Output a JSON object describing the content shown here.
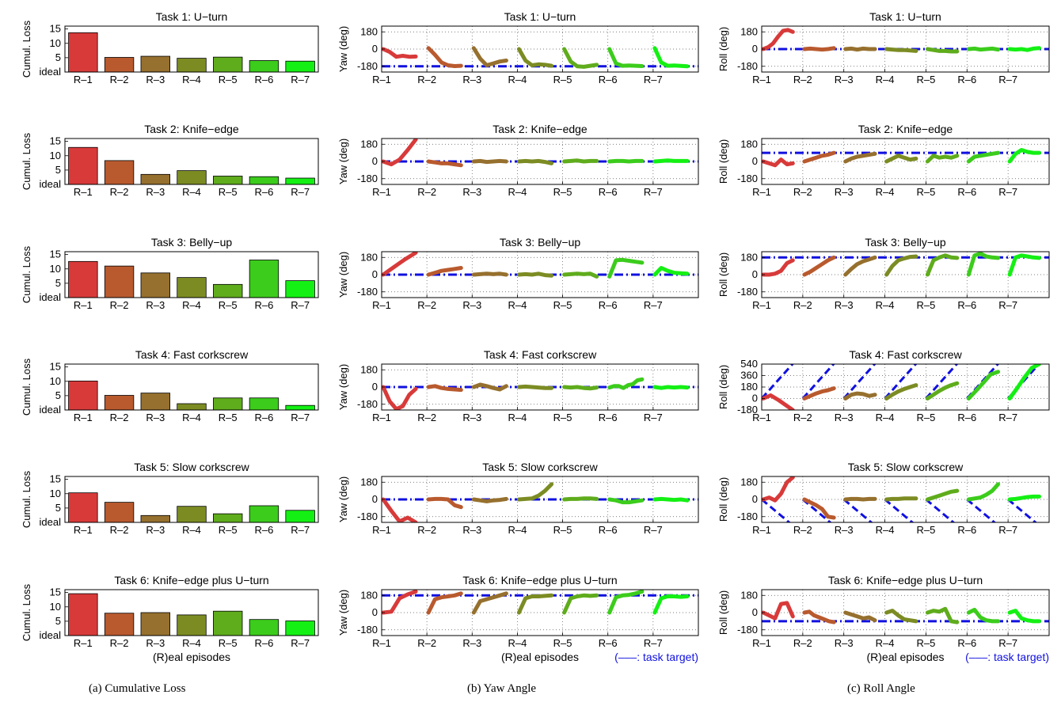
{
  "captions": {
    "a": "(a)  Cumulative Loss",
    "b": "(b)  Yaw Angle",
    "c": "(c)  Roll Angle"
  },
  "common": {
    "categories": [
      "R–1",
      "R–2",
      "R–3",
      "R–4",
      "R–5",
      "R–6",
      "R–7"
    ],
    "xlabel": "(R)eal episodes",
    "target_note": "(–––: task target)",
    "colors": [
      "#d83a3a",
      "#b95a2e",
      "#96702e",
      "#7c8c23",
      "#5fac1c",
      "#3ccc1c",
      "#14f014"
    ],
    "target_color": "#1010e0"
  },
  "chart_data": [
    {
      "panel": "loss",
      "task": 1,
      "type": "bar",
      "title": "Task 1: U−turn",
      "ylabel": "Cumul. Loss",
      "yticks": [
        "15",
        "10",
        "5",
        "ideal"
      ],
      "ylim": [
        0,
        16
      ],
      "values": [
        13.7,
        5.1,
        5.5,
        4.8,
        5.2,
        4.0,
        3.8
      ]
    },
    {
      "panel": "loss",
      "task": 2,
      "type": "bar",
      "title": "Task 2: Knife−edge",
      "ylabel": "Cumul. Loss",
      "yticks": [
        "15",
        "10",
        "5",
        "ideal"
      ],
      "ylim": [
        0,
        16
      ],
      "values": [
        12.9,
        8.3,
        3.5,
        4.8,
        2.9,
        2.7,
        2.2
      ]
    },
    {
      "panel": "loss",
      "task": 3,
      "type": "bar",
      "title": "Task 3: Belly−up",
      "ylabel": "Cumul. Loss",
      "yticks": [
        "15",
        "10",
        "5",
        "ideal"
      ],
      "ylim": [
        0,
        16
      ],
      "values": [
        12.6,
        11.0,
        8.6,
        7.0,
        4.6,
        13.1,
        5.9
      ]
    },
    {
      "panel": "loss",
      "task": 4,
      "type": "bar",
      "title": "Task 4: Fast corkscrew",
      "ylabel": "Cumul. Loss",
      "yticks": [
        "15",
        "10",
        "5",
        "ideal"
      ],
      "ylim": [
        0,
        16
      ],
      "values": [
        10.1,
        5.1,
        5.9,
        2.2,
        4.2,
        4.2,
        1.6
      ]
    },
    {
      "panel": "loss",
      "task": 5,
      "type": "bar",
      "title": "Task 5: Slow corkscrew",
      "ylabel": "Cumul. Loss",
      "yticks": [
        "15",
        "10",
        "5",
        "ideal"
      ],
      "ylim": [
        0,
        16
      ],
      "values": [
        10.3,
        7.0,
        2.4,
        5.6,
        3.0,
        5.8,
        4.2
      ]
    },
    {
      "panel": "loss",
      "task": 6,
      "type": "bar",
      "title": "Task 6: Knife−edge plus U−turn",
      "ylabel": "Cumul. Loss",
      "yticks": [
        "15",
        "10",
        "5",
        "ideal"
      ],
      "ylim": [
        0,
        16
      ],
      "values": [
        14.6,
        7.8,
        8.0,
        7.2,
        8.5,
        5.6,
        5.1
      ]
    },
    {
      "panel": "yaw",
      "task": 1,
      "type": "line",
      "title": "Task 1: U−turn",
      "ylabel": "Yaw (deg)",
      "yticks": [
        180,
        0,
        -180
      ],
      "ylim": [
        -240,
        240
      ],
      "target": -180,
      "series": [
        [
          0,
          -30,
          -80,
          -70,
          -80,
          -78
        ],
        [
          10,
          -60,
          -140,
          -170,
          -178,
          -175
        ],
        [
          10,
          -100,
          -170,
          -150,
          -130,
          -120
        ],
        [
          0,
          -120,
          -170,
          -160,
          -165,
          -175
        ],
        [
          0,
          -130,
          -180,
          -185,
          -175,
          -165
        ],
        [
          0,
          -150,
          -175,
          -172,
          -175,
          -178
        ],
        [
          10,
          -140,
          -175,
          -172,
          -176,
          -180
        ]
      ]
    },
    {
      "panel": "yaw",
      "task": 2,
      "type": "line",
      "title": "Task 2: Knife−edge",
      "ylabel": "Yaw (deg)",
      "yticks": [
        180,
        0,
        -180
      ],
      "ylim": [
        -240,
        240
      ],
      "target": 0,
      "series": [
        [
          0,
          -30,
          20,
          120,
          230
        ],
        [
          0,
          -10,
          -20,
          -20,
          -30,
          -40
        ],
        [
          0,
          5,
          -5,
          0,
          5,
          0
        ],
        [
          0,
          5,
          0,
          5,
          -5,
          -20
        ],
        [
          0,
          5,
          10,
          0,
          5,
          5
        ],
        [
          0,
          5,
          5,
          0,
          5,
          5
        ],
        [
          0,
          5,
          10,
          5,
          5,
          5
        ]
      ]
    },
    {
      "panel": "yaw",
      "task": 3,
      "type": "line",
      "title": "Task 3: Belly−up",
      "ylabel": "Yaw (deg)",
      "yticks": [
        180,
        0,
        -180
      ],
      "ylim": [
        -240,
        240
      ],
      "target": 0,
      "series": [
        [
          0,
          80,
          160,
          230
        ],
        [
          0,
          20,
          40,
          50,
          60,
          70
        ],
        [
          0,
          5,
          10,
          5,
          10,
          0
        ],
        [
          0,
          5,
          0,
          10,
          -5,
          -10
        ],
        [
          0,
          5,
          10,
          5,
          10,
          -20
        ],
        [
          -20,
          150,
          155,
          145,
          135,
          125
        ],
        [
          0,
          70,
          40,
          20,
          15,
          10
        ]
      ]
    },
    {
      "panel": "yaw",
      "task": 4,
      "type": "line",
      "title": "Task 4: Fast corkscrew",
      "ylabel": "Yaw (deg)",
      "yticks": [
        180,
        0,
        -180
      ],
      "ylim": [
        -240,
        240
      ],
      "target": 0,
      "series": [
        [
          0,
          -150,
          -230,
          -200,
          -80,
          -20
        ],
        [
          0,
          10,
          -10,
          -20,
          -25,
          -30
        ],
        [
          0,
          25,
          10,
          -10,
          -25,
          10
        ],
        [
          0,
          5,
          0,
          -5,
          -10,
          -10
        ],
        [
          0,
          -5,
          0,
          -10,
          -15,
          -5
        ],
        [
          -5,
          10,
          10,
          -10,
          20,
          30,
          70,
          80
        ],
        [
          0,
          -10,
          0,
          -5,
          0,
          -5
        ]
      ]
    },
    {
      "panel": "yaw",
      "task": 5,
      "type": "line",
      "title": "Task 5: Slow corkscrew",
      "ylabel": "Yaw (deg)",
      "yticks": [
        180,
        0,
        -180
      ],
      "ylim": [
        -240,
        240
      ],
      "target": 0,
      "series": [
        [
          0,
          -120,
          -230,
          -190,
          -240
        ],
        [
          0,
          5,
          5,
          0,
          -60,
          -80
        ],
        [
          0,
          -10,
          -20,
          -10,
          -5,
          5
        ],
        [
          0,
          5,
          10,
          40,
          90,
          160
        ],
        [
          0,
          5,
          5,
          10,
          10,
          5
        ],
        [
          0,
          -10,
          -30,
          -30,
          -20,
          -10
        ],
        [
          0,
          5,
          0,
          -5,
          0,
          -10
        ]
      ]
    },
    {
      "panel": "yaw",
      "task": 6,
      "type": "line",
      "title": "Task 6: Knife−edge plus U−turn",
      "ylabel": "Yaw (deg)",
      "yticks": [
        180,
        0,
        -180
      ],
      "ylim": [
        -240,
        240
      ],
      "target": 180,
      "series": [
        [
          0,
          10,
          150,
          190,
          220
        ],
        [
          0,
          140,
          160,
          170,
          180,
          200
        ],
        [
          0,
          120,
          140,
          160,
          180,
          200
        ],
        [
          0,
          150,
          170,
          170,
          175,
          180
        ],
        [
          0,
          150,
          170,
          180,
          175,
          180
        ],
        [
          0,
          160,
          180,
          185,
          200,
          220
        ],
        [
          0,
          150,
          170,
          170,
          165,
          170
        ]
      ]
    },
    {
      "panel": "roll",
      "task": 1,
      "type": "line",
      "title": "Task 1: U−turn",
      "ylabel": "Roll (deg)",
      "yticks": [
        180,
        0,
        -180
      ],
      "ylim": [
        -240,
        240
      ],
      "target": 0,
      "series": [
        [
          0,
          20,
          60,
          130,
          190,
          200,
          180
        ],
        [
          0,
          5,
          0,
          -5,
          0,
          10
        ],
        [
          0,
          5,
          -5,
          5,
          0,
          0
        ],
        [
          0,
          -5,
          -10,
          -10,
          -15,
          -20
        ],
        [
          0,
          -10,
          -20,
          -20,
          -25,
          -25
        ],
        [
          0,
          5,
          -5,
          0,
          5,
          -5
        ],
        [
          0,
          -5,
          0,
          -10,
          5,
          10
        ]
      ]
    },
    {
      "panel": "roll",
      "task": 2,
      "type": "line",
      "title": "Task 2: Knife−edge",
      "ylabel": "Roll (deg)",
      "yticks": [
        180,
        0,
        -180
      ],
      "ylim": [
        -240,
        240
      ],
      "target": 90,
      "series": [
        [
          0,
          -20,
          -40,
          20,
          -30,
          -20
        ],
        [
          0,
          20,
          40,
          60,
          70,
          90
        ],
        [
          0,
          30,
          50,
          60,
          70,
          80
        ],
        [
          0,
          30,
          60,
          40,
          20,
          30
        ],
        [
          0,
          60,
          40,
          50,
          40,
          60
        ],
        [
          0,
          50,
          60,
          70,
          80,
          90
        ],
        [
          0,
          80,
          120,
          100,
          90,
          90
        ]
      ]
    },
    {
      "panel": "roll",
      "task": 3,
      "type": "line",
      "title": "Task 3: Belly−up",
      "ylabel": "Roll (deg)",
      "yticks": [
        180,
        0,
        -180
      ],
      "ylim": [
        -240,
        240
      ],
      "target": 180,
      "series": [
        [
          0,
          0,
          10,
          40,
          120,
          150
        ],
        [
          0,
          30,
          70,
          110,
          150,
          180
        ],
        [
          0,
          60,
          110,
          140,
          160,
          180
        ],
        [
          0,
          90,
          150,
          170,
          185,
          190
        ],
        [
          0,
          150,
          180,
          200,
          180,
          175
        ],
        [
          0,
          200,
          220,
          190,
          180,
          175
        ],
        [
          0,
          180,
          200,
          190,
          180,
          175
        ]
      ]
    },
    {
      "panel": "roll",
      "task": 4,
      "type": "line",
      "title": "Task 4: Fast corkscrew",
      "ylabel": "Roll (deg)",
      "yticks": [
        540,
        360,
        180,
        0,
        -180
      ],
      "ylim": [
        -180,
        540
      ],
      "target_slope": 720,
      "series": [
        [
          0,
          50,
          -20,
          -100,
          -180
        ],
        [
          0,
          40,
          80,
          110,
          130,
          160
        ],
        [
          0,
          60,
          80,
          70,
          40,
          60
        ],
        [
          0,
          60,
          110,
          150,
          180,
          210
        ],
        [
          0,
          60,
          120,
          170,
          210,
          240
        ],
        [
          0,
          120,
          250,
          380,
          420
        ],
        [
          0,
          160,
          330,
          480,
          540
        ]
      ]
    },
    {
      "panel": "roll",
      "task": 5,
      "type": "line",
      "title": "Task 5: Slow corkscrew",
      "ylabel": "Roll (deg)",
      "yticks": [
        180,
        0,
        -180
      ],
      "ylim": [
        -240,
        240
      ],
      "target_slope": -360,
      "series": [
        [
          0,
          20,
          -10,
          60,
          180,
          230
        ],
        [
          0,
          -30,
          -60,
          -100,
          -180,
          -190
        ],
        [
          0,
          5,
          5,
          0,
          5,
          5
        ],
        [
          0,
          5,
          5,
          10,
          10,
          10
        ],
        [
          0,
          20,
          40,
          60,
          80,
          90
        ],
        [
          0,
          10,
          20,
          50,
          90,
          160
        ],
        [
          0,
          5,
          15,
          25,
          30,
          30
        ]
      ]
    },
    {
      "panel": "roll",
      "task": 6,
      "type": "line",
      "title": "Task 6: Knife−edge plus U−turn",
      "ylabel": "Roll (deg)",
      "yticks": [
        180,
        0,
        -180
      ],
      "ylim": [
        -240,
        240
      ],
      "target": -90,
      "series": [
        [
          0,
          -30,
          -60,
          90,
          100,
          -40
        ],
        [
          0,
          10,
          -30,
          -50,
          -70,
          -90,
          -100
        ],
        [
          0,
          -20,
          -40,
          -60,
          -50,
          -80
        ],
        [
          0,
          20,
          -30,
          -70,
          -80,
          -90
        ],
        [
          0,
          20,
          10,
          40,
          -90,
          -100
        ],
        [
          0,
          30,
          -50,
          -80,
          -90,
          -90
        ],
        [
          0,
          20,
          -60,
          -80,
          -90,
          -90
        ]
      ]
    }
  ]
}
